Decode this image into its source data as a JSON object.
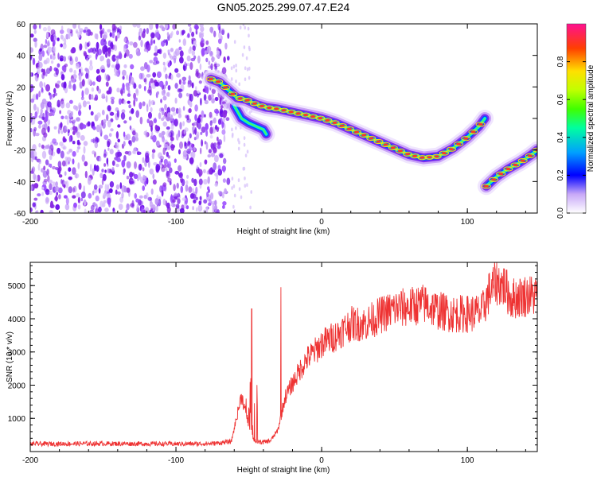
{
  "title": "GN05.2025.299.07.47.E24",
  "chart_data": [
    {
      "type": "heatmap",
      "name": "spectrogram",
      "xlabel": "Height of straight line (km)",
      "ylabel": "Frequency (Hz)",
      "xlim": [
        -200,
        148
      ],
      "ylim": [
        -60,
        60
      ],
      "xticks": [
        -200,
        -100,
        0,
        100
      ],
      "yticks": [
        -60,
        -40,
        -20,
        0,
        20,
        40,
        60
      ],
      "noise_region_x": [
        -200,
        -68
      ],
      "track": {
        "x": [
          -76,
          -70,
          -64,
          -58,
          -52,
          -45,
          -38,
          -30,
          -20,
          -10,
          0,
          10,
          20,
          30,
          40,
          50,
          60,
          70,
          80,
          90,
          100,
          108,
          112
        ],
        "y": [
          25,
          23,
          18,
          13,
          12,
          9,
          7,
          6,
          4,
          2,
          0,
          -3,
          -7,
          -11,
          -15,
          -19,
          -23,
          -25,
          -24,
          -19,
          -12,
          -5,
          0
        ]
      },
      "track_branch": {
        "x": [
          -60,
          -55,
          -50,
          -45,
          -40,
          -38
        ],
        "y": [
          8,
          0,
          -3,
          -5,
          -7,
          -10
        ]
      },
      "track2": {
        "x": [
          113,
          120,
          128,
          136,
          144,
          148
        ],
        "y": [
          -43,
          -37,
          -32,
          -28,
          -23,
          -20
        ]
      },
      "colorbar": {
        "label": "Normalized spectral amplitude",
        "ticks": [
          0.0,
          0.2,
          0.4,
          0.6,
          0.8
        ],
        "tick_labels": [
          "0.0",
          "0.2",
          "0.4",
          "0.6",
          "0.8"
        ],
        "range": [
          0,
          1
        ]
      }
    },
    {
      "type": "line",
      "name": "snr",
      "xlabel": "Height of straight line (km)",
      "ylabel": "SNR (10 * v/v)",
      "xlim": [
        -200,
        148
      ],
      "ylim": [
        0,
        5700
      ],
      "xticks": [
        -200,
        -100,
        0,
        100
      ],
      "yticks": [
        1000,
        2000,
        3000,
        4000,
        5000
      ],
      "color": "#ee3333",
      "envelope": {
        "x": [
          -200,
          -150,
          -100,
          -75,
          -62,
          -55,
          -50,
          -47,
          -45,
          -40,
          -35,
          -30,
          -25,
          -20,
          -15,
          -10,
          -5,
          0,
          10,
          20,
          30,
          40,
          50,
          60,
          70,
          80,
          90,
          100,
          110,
          115,
          120,
          125,
          130,
          140,
          148
        ],
        "y": [
          230,
          240,
          230,
          240,
          300,
          1700,
          800,
          400,
          300,
          280,
          330,
          650,
          1650,
          2050,
          2450,
          2800,
          3000,
          3250,
          3500,
          3850,
          3850,
          4100,
          4300,
          4350,
          4450,
          4250,
          4150,
          4150,
          4200,
          4800,
          5100,
          5000,
          4600,
          4700,
          4700
        ]
      },
      "spikes": [
        {
          "x": -48,
          "y": 4300
        },
        {
          "x": -28,
          "y": 4950
        }
      ]
    }
  ]
}
